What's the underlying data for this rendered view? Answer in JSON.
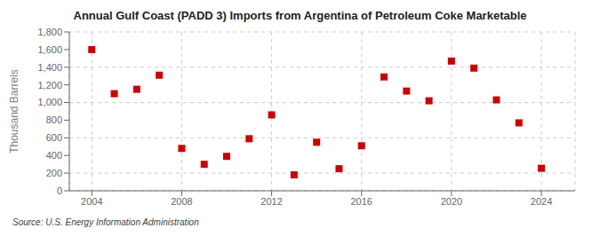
{
  "chart_data": {
    "type": "scatter",
    "title": "Annual Gulf Coast (PADD 3) Imports from Argentina of Petroleum Coke Marketable",
    "y_label": "Thousand Barrels",
    "annotations": [
      "Source: U.S. Energy Information Administration"
    ],
    "x": [
      2004,
      2005,
      2006,
      2007,
      2008,
      2009,
      2010,
      2011,
      2012,
      2013,
      2014,
      2015,
      2016,
      2017,
      2018,
      2019,
      2020,
      2021,
      2022,
      2023,
      2024
    ],
    "values": [
      1600,
      1100,
      1150,
      1310,
      480,
      300,
      390,
      590,
      860,
      180,
      550,
      250,
      510,
      1290,
      1130,
      1020,
      1470,
      1390,
      1030,
      770,
      255
    ],
    "color": "#cc0000",
    "marker": "square",
    "xlim": [
      2003.0,
      2025.5
    ],
    "xticks": [
      2004,
      2008,
      2012,
      2016,
      2020,
      2024
    ],
    "ylim": [
      0,
      1800
    ],
    "yticks": [
      0,
      200,
      400,
      600,
      800,
      {
        "value": 1000,
        "label": "1,000"
      },
      {
        "value": 1200,
        "label": "1,200"
      },
      {
        "value": 1400,
        "label": "1,400"
      },
      {
        "value": 1600,
        "label": "1,600"
      },
      {
        "value": 1800,
        "label": "1,800"
      }
    ],
    "grid": true
  }
}
